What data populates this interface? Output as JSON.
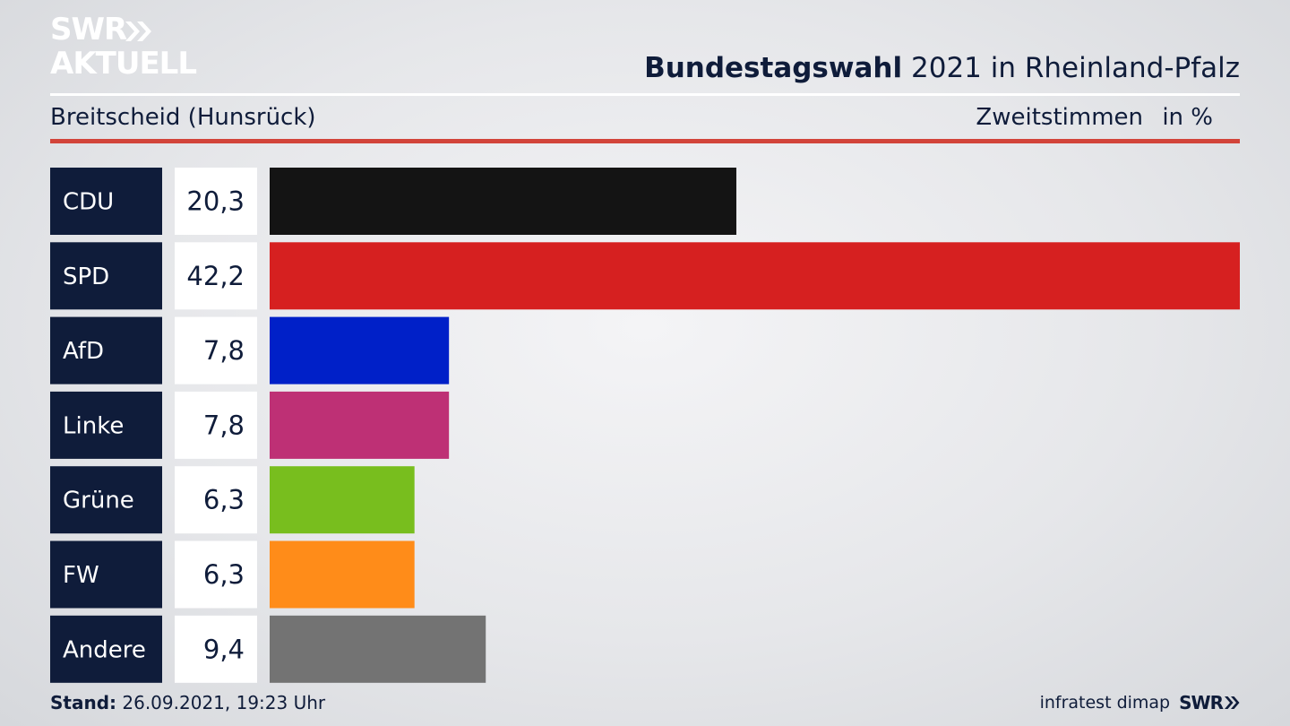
{
  "logo": {
    "line1": "SWR",
    "line2": "AKTUELL"
  },
  "title": {
    "bold": "Bundestagswahl",
    "rest": "2021 in Rheinland-Pfalz"
  },
  "subtitle": {
    "region": "Breitscheid (Hunsrück)",
    "metric": "Zweitstimmen",
    "unit": "in %"
  },
  "footer": {
    "stand_label": "Stand:",
    "stand_value": "26.09.2021, 19:23 Uhr",
    "source": "infratest dimap",
    "brand": "SWR"
  },
  "colors": {
    "accent_red": "#d2443a",
    "label_bg": "#0f1c3a",
    "value_bg": "#ffffff"
  },
  "chart_data": {
    "type": "bar",
    "orientation": "horizontal",
    "title": "Bundestagswahl 2021 in Rheinland-Pfalz",
    "categories": [
      "CDU",
      "SPD",
      "AfD",
      "Linke",
      "Grüne",
      "FW",
      "Andere"
    ],
    "values": [
      20.3,
      42.2,
      7.8,
      7.8,
      6.3,
      6.3,
      9.4
    ],
    "value_labels": [
      "20,3",
      "42,2",
      "7,8",
      "7,8",
      "6,3",
      "6,3",
      "9,4"
    ],
    "colors": [
      "#141414",
      "#d62020",
      "#0020c8",
      "#be3075",
      "#78be1e",
      "#ff8c19",
      "#737373"
    ],
    "xlim": [
      0,
      42.2
    ],
    "grid": false,
    "legend": "none"
  }
}
